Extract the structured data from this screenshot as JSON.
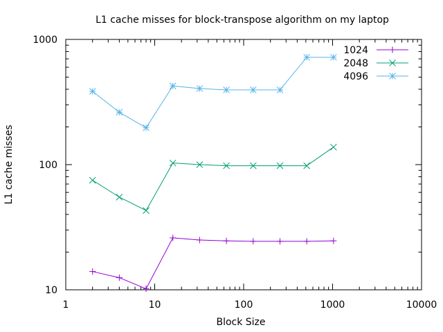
{
  "chart_data": {
    "type": "line",
    "title": "L1 cache misses for block-transpose algorithm on my laptop",
    "xlabel": "Block Size",
    "ylabel": "L1 cache misses",
    "xscale": "log",
    "yscale": "log",
    "xlim": [
      1,
      10000
    ],
    "ylim": [
      10,
      1000
    ],
    "grid": false,
    "legend_position": "top-right",
    "x_ticks": [
      {
        "value": 1,
        "label": "1"
      },
      {
        "value": 10,
        "label": "10"
      },
      {
        "value": 100,
        "label": "100"
      },
      {
        "value": 1000,
        "label": "1000"
      },
      {
        "value": 10000,
        "label": "10000"
      }
    ],
    "y_ticks": [
      {
        "value": 10,
        "label": "10"
      },
      {
        "value": 100,
        "label": "100"
      },
      {
        "value": 1000,
        "label": "1000"
      }
    ],
    "series": [
      {
        "name": "1024",
        "color": "#9400d3",
        "marker": "plus",
        "x": [
          2,
          4,
          8,
          16,
          32,
          64,
          128,
          256,
          512,
          1024
        ],
        "values": [
          14,
          12.5,
          10.2,
          26,
          25,
          24.6,
          24.4,
          24.4,
          24.4,
          24.6
        ]
      },
      {
        "name": "2048",
        "color": "#009e73",
        "marker": "cross",
        "x": [
          2,
          4,
          8,
          16,
          32,
          64,
          128,
          256,
          512,
          1024
        ],
        "values": [
          75,
          55,
          43,
          103,
          100,
          98,
          98,
          98,
          98,
          138
        ]
      },
      {
        "name": "4096",
        "color": "#56b4e9",
        "marker": "star",
        "x": [
          2,
          4,
          8,
          16,
          32,
          64,
          128,
          256,
          512,
          1024
        ],
        "values": [
          385,
          262,
          197,
          425,
          405,
          395,
          395,
          395,
          720,
          720
        ]
      }
    ]
  }
}
